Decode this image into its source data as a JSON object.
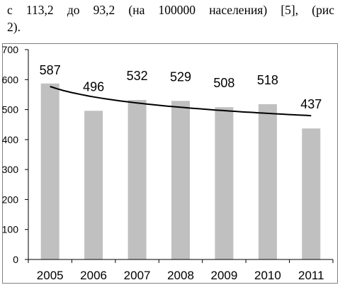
{
  "page": {
    "text_lines": [
      "с 113,2 до 93,2 (на 100000 населения) [5], (рис",
      "2)."
    ]
  },
  "chart_data": {
    "type": "bar",
    "title": "",
    "xlabel": "",
    "ylabel": "",
    "categories": [
      "2005",
      "2006",
      "2007",
      "2008",
      "2009",
      "2010",
      "2011"
    ],
    "values": [
      587,
      496,
      532,
      529,
      508,
      518,
      437
    ],
    "data_labels": [
      "587",
      "496",
      "532",
      "529",
      "508",
      "518",
      "437"
    ],
    "ylim": [
      0,
      700
    ],
    "yticks": [
      0,
      100,
      200,
      300,
      400,
      500,
      600,
      700
    ],
    "ytick_labels": [
      "0",
      "100",
      "200",
      "300",
      "400",
      "500",
      "600",
      "700"
    ],
    "grid": false,
    "legend": "none",
    "trendline": {
      "type": "logarithmic",
      "a": 577,
      "b": -50
    },
    "colors": {
      "bar": "#c0c0c0",
      "trend": "#000000",
      "axis": "#000000",
      "frame": "#7f7f7f"
    }
  }
}
